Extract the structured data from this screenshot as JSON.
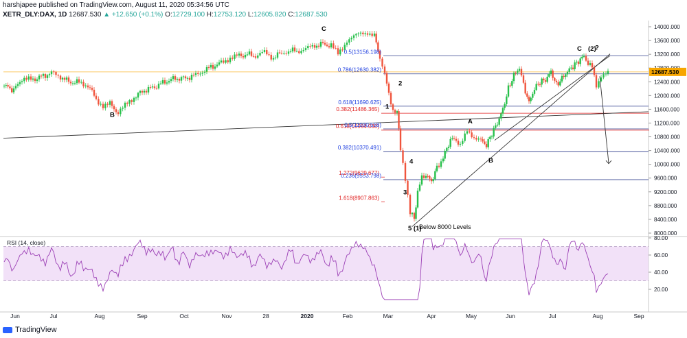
{
  "header": {
    "publisher": "harshjapee published on TradingView.com, August 11, 2020 05:34:56 UTC",
    "symbol": "XETR_DLY:DAX, 1D",
    "last": "12687.530",
    "change": "+12.650 (+0.1%)",
    "open_label": "O:",
    "open": "12729.100",
    "high_label": "H:",
    "high": "12753.120",
    "low_label": "L:",
    "low": "12605.820",
    "close_label": "C:",
    "close": "12687.530"
  },
  "footer": {
    "brand": "TradingView"
  },
  "colors": {
    "up": "#26c04a",
    "down": "#f0543c",
    "fib_red": "#e02020",
    "fib_blue": "#2040e0",
    "rsi": "#9b3fb5",
    "rsi_band": "#efd9f6",
    "trend": "#333333",
    "price_line": "#f7a600"
  },
  "chart_data": [
    {
      "type": "candlestick",
      "title": "",
      "ylim": [
        8000,
        14100
      ],
      "y_ticks": [
        "14000.000",
        "13600.000",
        "13200.000",
        "12800.000",
        "12400.000",
        "12000.000",
        "11600.000",
        "11200.000",
        "10800.000",
        "10400.000",
        "10000.000",
        "9600.000",
        "9200.000",
        "8800.000",
        "8400.000",
        "8000.000"
      ],
      "x_ticks": [
        "Jun",
        "Jul",
        "Aug",
        "Sep",
        "Oct",
        "Nov",
        "28",
        "2020",
        "Feb",
        "Mar",
        "Apr",
        "May",
        "Jun",
        "Jul",
        "Aug",
        "Sep"
      ],
      "last_price_label": "12687.530",
      "fib_levels_red": [
        {
          "label": "0.382(11486.365)",
          "value": 11486.365
        },
        {
          "label": "0.618(10994.030)",
          "value": 10994.03
        },
        {
          "label": "1.272(9629.677)",
          "value": 9629.677
        },
        {
          "label": "1.618(8907.863)",
          "value": 8907.863
        }
      ],
      "fib_levels_blue": [
        {
          "label": "0.5(13156.198)",
          "value": 13156.198
        },
        {
          "label": "0.786(12630.382)",
          "value": 12630.382
        },
        {
          "label": "0.618(11690.625)",
          "value": 11690.625
        },
        {
          "label": "0.5(11030.558)",
          "value": 11030.558
        },
        {
          "label": "0.382(10370.491)",
          "value": 10370.491
        },
        {
          "label": "0.236(9553.798)",
          "value": 9553.798
        }
      ],
      "wave_labels": [
        "B",
        "C",
        "1",
        "2",
        "3",
        "4",
        "5 (1)",
        "A",
        "B",
        "C",
        "(2)",
        "?"
      ],
      "annotations": [
        "Below 8000 Levels"
      ]
    },
    {
      "type": "line",
      "title": "RSI (14, close)",
      "ylim": [
        0,
        80
      ],
      "y_ticks": [
        "80.00",
        "60.00",
        "40.00",
        "20.00"
      ]
    }
  ]
}
